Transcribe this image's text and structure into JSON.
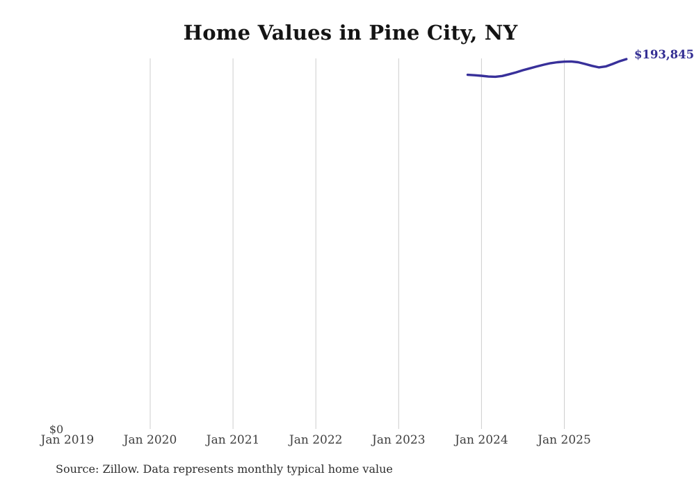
{
  "chart_data": {
    "type": "line",
    "title": "Home Values in Pine City, NY",
    "x": [
      "Nov 2023",
      "Dec 2023",
      "Jan 2024",
      "Feb 2024",
      "Mar 2024",
      "Apr 2024",
      "May 2024",
      "Jun 2024",
      "Jul 2024",
      "Aug 2024",
      "Sep 2024",
      "Oct 2024",
      "Nov 2024",
      "Dec 2024",
      "Jan 2025",
      "Feb 2025",
      "Mar 2025",
      "Apr 2025",
      "May 2025",
      "Jun 2025",
      "Jul 2025",
      "Aug 2025",
      "Sep 2025",
      "Oct 2025"
    ],
    "values": [
      185600,
      185400,
      185100,
      184700,
      184600,
      185000,
      185900,
      186900,
      188000,
      189000,
      190000,
      190900,
      191700,
      192200,
      192500,
      192600,
      192200,
      191300,
      190300,
      189500,
      190000,
      191300,
      192700,
      193845
    ],
    "x_tick_labels": [
      "Jan 2019",
      "Jan 2020",
      "Jan 2021",
      "Jan 2022",
      "Jan 2023",
      "Jan 2024",
      "Jan 2025"
    ],
    "gridline_years": [
      "Jan 2020",
      "Jan 2021",
      "Jan 2022",
      "Jan 2023",
      "Jan 2024",
      "Jan 2025"
    ],
    "y_zero_label": "$0",
    "end_label": "$193,845",
    "ylim": [
      0,
      193845
    ],
    "grid": "vertical-only",
    "legend": "none",
    "line_color": "#38309a",
    "label_color": "#332e93",
    "gridline_color": "#cdcdcd",
    "source": "Source: Zillow. Data represents monthly typical home value"
  }
}
